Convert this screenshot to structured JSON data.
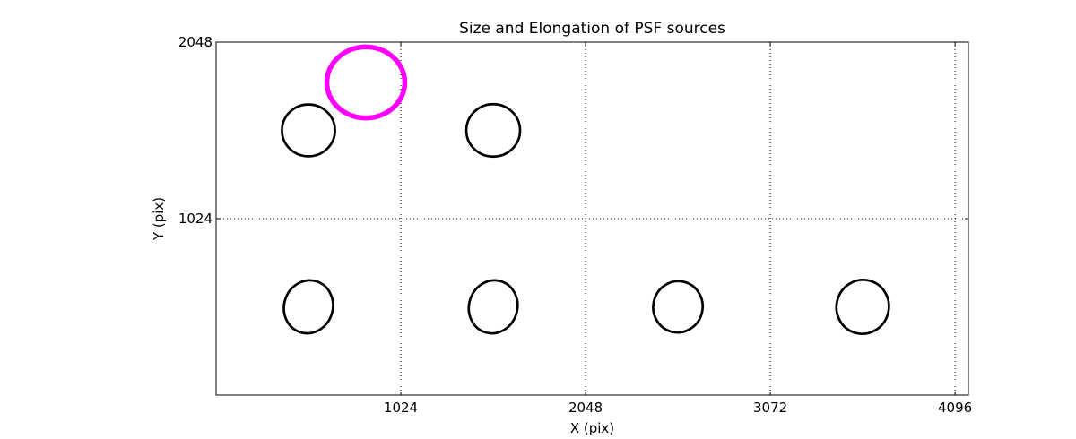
{
  "chart_data": {
    "type": "scatter",
    "title": "Size and Elongation of PSF sources",
    "xlabel": "X (pix)",
    "ylabel": "Y (pix)",
    "xlim": [
      0,
      4170
    ],
    "ylim": [
      0,
      2048
    ],
    "xticks": [
      1024,
      2048,
      3072,
      4096
    ],
    "yticks": [
      1024,
      2048
    ],
    "grid": {
      "style": "dotted",
      "color": "#000000"
    },
    "frame_color": "#000000",
    "background_color": "#ffffff",
    "highlight_color": "#ff00ff",
    "source_color": "#000000",
    "sources": [
      {
        "x": 512,
        "y": 1536,
        "a": 147,
        "b": 150,
        "angle": 0,
        "color": "#000000",
        "lw": 2.7,
        "role": "psf-source"
      },
      {
        "x": 1536,
        "y": 1536,
        "a": 149,
        "b": 152,
        "angle": 0,
        "color": "#000000",
        "lw": 2.7,
        "role": "psf-source"
      },
      {
        "x": 512,
        "y": 512,
        "a": 135,
        "b": 155,
        "angle": 18,
        "color": "#000000",
        "lw": 2.7,
        "role": "psf-source"
      },
      {
        "x": 1536,
        "y": 512,
        "a": 134,
        "b": 155,
        "angle": 17,
        "color": "#000000",
        "lw": 2.7,
        "role": "psf-source"
      },
      {
        "x": 2560,
        "y": 512,
        "a": 137,
        "b": 149,
        "angle": 12,
        "color": "#000000",
        "lw": 2.7,
        "role": "psf-source"
      },
      {
        "x": 3584,
        "y": 512,
        "a": 145,
        "b": 157,
        "angle": 15,
        "color": "#000000",
        "lw": 2.7,
        "role": "psf-source"
      },
      {
        "x": 830,
        "y": 1814,
        "a": 216,
        "b": 206,
        "angle": 0,
        "color": "#ff00ff",
        "lw": 5.5,
        "role": "highlighted-psf-source"
      }
    ]
  }
}
